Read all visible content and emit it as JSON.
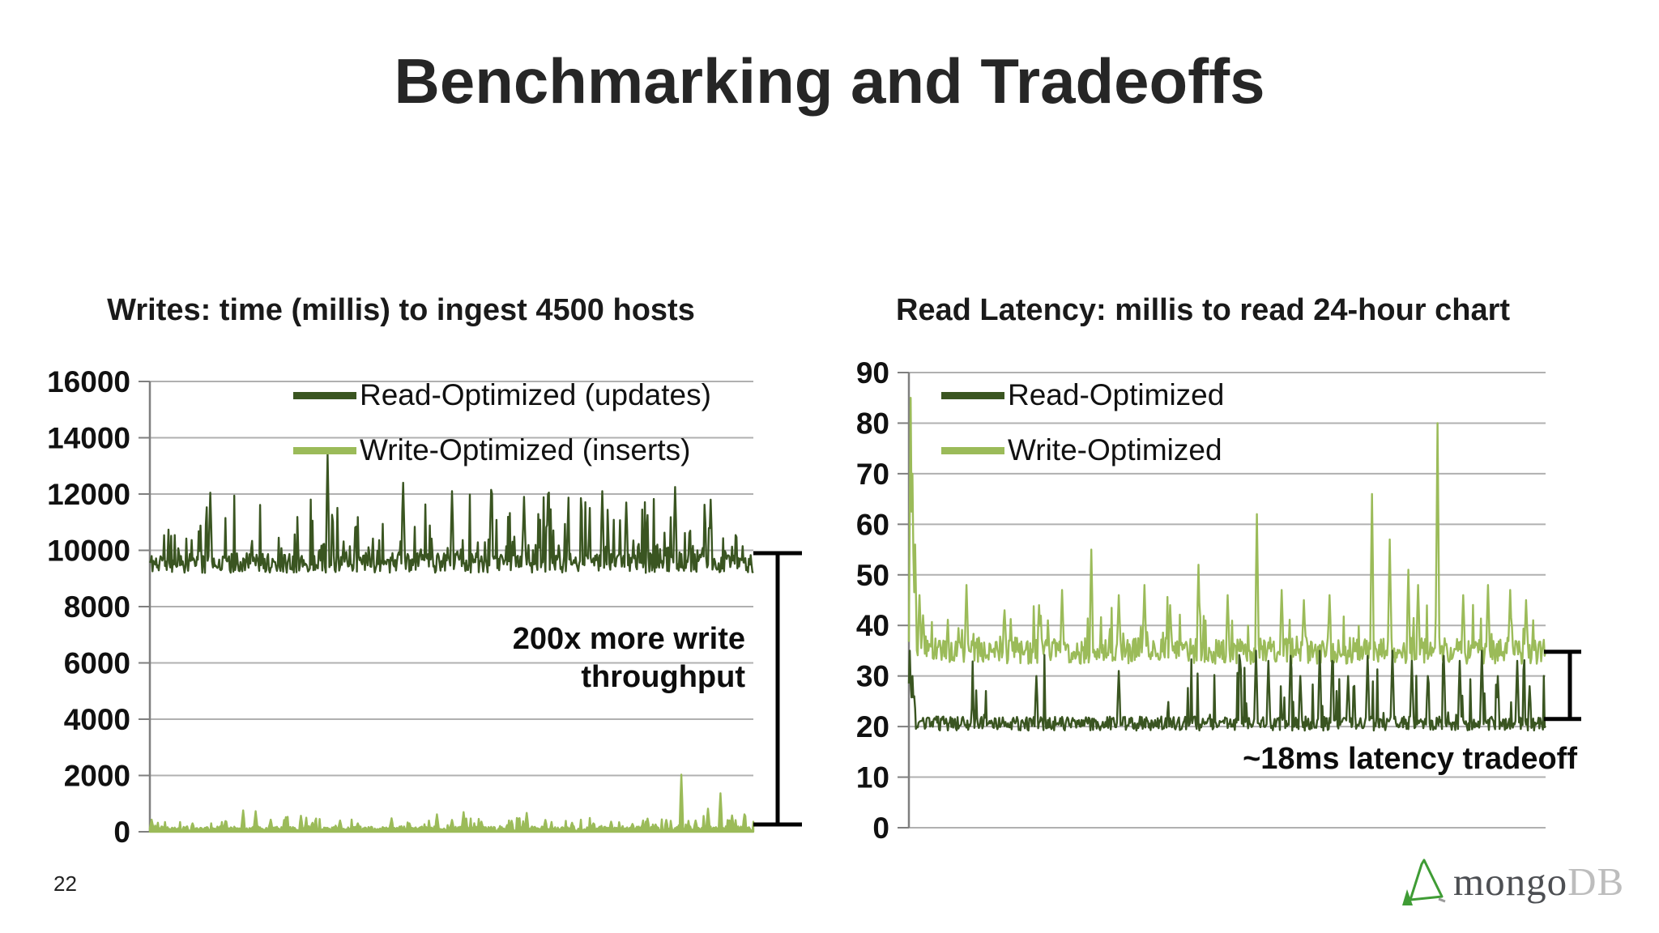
{
  "slide": {
    "title": "Benchmarking and Tradeoffs"
  },
  "footer": {
    "page_number": "22",
    "logo": {
      "prefix": "mongo",
      "suffix": "DB",
      "leaf_color": "#3f9c35"
    }
  },
  "colors": {
    "grid": "#b0b0b0",
    "axis": "#7f7f7f",
    "bracket": "#000000",
    "text": "#111111",
    "dark_green": "#3A5521",
    "light_green": "#9BBB59"
  },
  "chart_data": [
    {
      "type": "line",
      "title": "Writes: time (millis) to ingest 4500 hosts",
      "xlabel": "",
      "ylabel": "",
      "ylim": [
        0,
        16000
      ],
      "yticks": [
        0,
        2000,
        4000,
        6000,
        8000,
        10000,
        12000,
        14000,
        16000
      ],
      "grid": true,
      "legend_position": "top-center",
      "draw_order": [
        0,
        1
      ],
      "series": [
        {
          "name": "Read-Optimized (updates)",
          "color": "#3A5521",
          "seed": 11,
          "points": 680,
          "baseline": 9550,
          "noise": 350,
          "up_prob": 0.3,
          "up_amp": 2300,
          "up_pow": 2.4,
          "min": 9050,
          "spikes": [
            [
              0.1,
              12050
            ],
            [
              0.295,
              13400
            ],
            [
              0.42,
              12400
            ],
            [
              0.5,
              12100
            ],
            [
              0.565,
              12150
            ],
            [
              0.62,
              11900
            ],
            [
              0.66,
              12000
            ],
            [
              0.75,
              12100
            ],
            [
              0.79,
              11700
            ],
            [
              0.87,
              12250
            ],
            [
              0.93,
              11800
            ]
          ]
        },
        {
          "name": "Write-Optimized (inserts)",
          "color": "#9BBB59",
          "seed": 22,
          "points": 680,
          "baseline": 105,
          "noise": 85,
          "up_prob": 0.17,
          "up_amp": 420,
          "up_pow": 2.2,
          "min": 22,
          "fill": true,
          "spikes": [
            [
              0.003,
              430
            ],
            [
              0.02,
              180
            ],
            [
              0.07,
              300
            ],
            [
              0.125,
              380
            ],
            [
              0.155,
              760
            ],
            [
              0.175,
              730
            ],
            [
              0.2,
              430
            ],
            [
              0.225,
              520
            ],
            [
              0.25,
              570
            ],
            [
              0.27,
              320
            ],
            [
              0.315,
              400
            ],
            [
              0.345,
              300
            ],
            [
              0.4,
              480
            ],
            [
              0.43,
              300
            ],
            [
              0.475,
              620
            ],
            [
              0.5,
              420
            ],
            [
              0.52,
              700
            ],
            [
              0.55,
              360
            ],
            [
              0.6,
              390
            ],
            [
              0.625,
              670
            ],
            [
              0.655,
              420
            ],
            [
              0.7,
              320
            ],
            [
              0.735,
              300
            ],
            [
              0.765,
              360
            ],
            [
              0.8,
              280
            ],
            [
              0.825,
              470
            ],
            [
              0.855,
              420
            ],
            [
              0.88,
              2030
            ],
            [
              0.905,
              400
            ],
            [
              0.925,
              820
            ],
            [
              0.945,
              1370
            ],
            [
              0.965,
              580
            ],
            [
              0.985,
              620
            ]
          ]
        }
      ],
      "annotation": {
        "lines": [
          "200x more write",
          "throughput"
        ]
      },
      "bracket": {
        "from_value": 9900,
        "to_value": 260
      }
    },
    {
      "type": "line",
      "title": "Read Latency: millis to read 24-hour chart",
      "xlabel": "",
      "ylabel": "",
      "ylim": [
        0,
        90
      ],
      "yticks": [
        0,
        10,
        20,
        30,
        40,
        50,
        60,
        70,
        80,
        90
      ],
      "grid": true,
      "legend_position": "top-left",
      "draw_order": [
        1,
        0
      ],
      "series": [
        {
          "name": "Read-Optimized",
          "color": "#3A5521",
          "seed": 33,
          "points": 720,
          "baseline": 20.6,
          "noise": 1.4,
          "up_prob": 0.04,
          "up_prob2": 0.1,
          "up_split": 0.42,
          "up_amp": 13,
          "up_pow": 1.6,
          "min": 18.2,
          "max": 35.5,
          "spikes": [
            [
              0.002,
              35
            ],
            [
              0.005,
              30
            ],
            [
              0.009,
              26
            ],
            [
              0.1,
              26
            ],
            [
              0.2,
              30
            ],
            [
              0.33,
              31
            ],
            [
              0.52,
              33
            ],
            [
              0.545,
              35
            ],
            [
              0.565,
              33
            ],
            [
              0.6,
              34
            ],
            [
              0.615,
              30
            ],
            [
              0.645,
              35
            ],
            [
              0.665,
              33
            ],
            [
              0.69,
              30
            ],
            [
              0.72,
              34
            ],
            [
              0.76,
              35
            ],
            [
              0.79,
              33
            ],
            [
              0.815,
              30
            ],
            [
              0.84,
              34
            ],
            [
              0.865,
              33
            ],
            [
              0.9,
              35
            ],
            [
              0.925,
              30
            ],
            [
              0.955,
              33
            ],
            [
              0.975,
              28
            ]
          ]
        },
        {
          "name": "Write-Optimized",
          "color": "#9BBB59",
          "seed": 44,
          "points": 720,
          "baseline": 35,
          "noise": 2.6,
          "up_prob": 0.13,
          "up_amp": 9,
          "up_pow": 2.0,
          "min": 29.5,
          "spikes": [
            [
              0.003,
              85
            ],
            [
              0.006,
              70
            ],
            [
              0.01,
              56
            ],
            [
              0.016,
              46
            ],
            [
              0.022,
              42
            ],
            [
              0.09,
              48
            ],
            [
              0.15,
              43
            ],
            [
              0.205,
              44
            ],
            [
              0.24,
              47
            ],
            [
              0.287,
              55
            ],
            [
              0.33,
              46
            ],
            [
              0.37,
              48
            ],
            [
              0.41,
              44
            ],
            [
              0.455,
              52
            ],
            [
              0.5,
              46
            ],
            [
              0.547,
              62
            ],
            [
              0.585,
              47
            ],
            [
              0.62,
              45
            ],
            [
              0.66,
              46
            ],
            [
              0.727,
              66
            ],
            [
              0.755,
              57
            ],
            [
              0.785,
              51
            ],
            [
              0.8,
              48
            ],
            [
              0.83,
              80
            ],
            [
              0.87,
              46
            ],
            [
              0.91,
              48
            ],
            [
              0.945,
              47
            ],
            [
              0.97,
              45
            ]
          ]
        }
      ],
      "annotation": {
        "lines": [
          "~18ms latency tradeoff"
        ]
      },
      "bracket": {
        "from_value": 34.8,
        "to_value": 21.5
      }
    }
  ]
}
